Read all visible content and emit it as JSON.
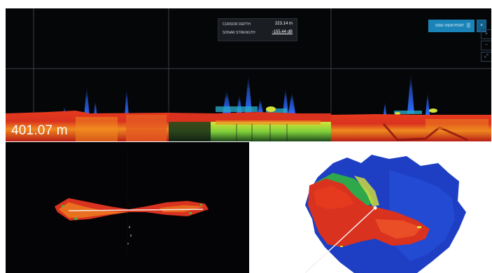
{
  "depth_readout": "401.07 m",
  "cursor_panel": {
    "row1_label": "CURSOR DEPTH",
    "row1_value": "223.14 m",
    "row2_label": "SONAR STRENGTH",
    "row2_value": "-155.44 dB"
  },
  "top_button": {
    "label": "SIDE VIEW PORT",
    "suffix": "|||"
  },
  "close_icon_glyph": "×",
  "side_tools": [
    "+",
    "−",
    "⤢"
  ],
  "colors": {
    "echo_bg": "#050608",
    "seabed_red": "#d9321f",
    "seabed_orange": "#f08a1f",
    "water_blue": "#1e3fc4",
    "button_blue": "#1a84b8"
  }
}
